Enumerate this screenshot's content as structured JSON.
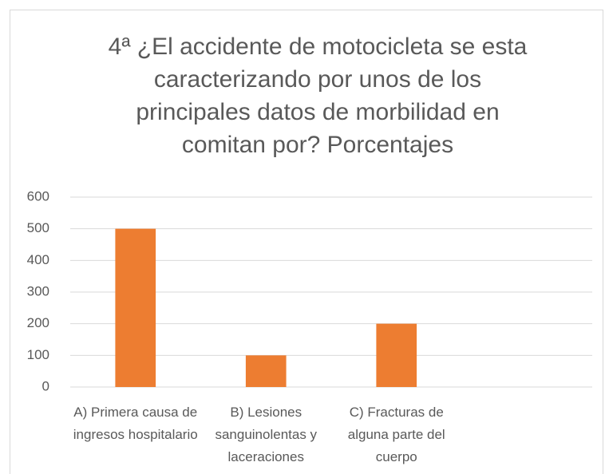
{
  "chart_data": {
    "type": "bar",
    "title": "4ª  ¿El accidente de motocicleta se esta caracterizando por unos de los principales datos de morbilidad en comitan por? Porcentajes",
    "categories": [
      "A) Primera causa de ingresos hospitalario",
      "B) Lesiones sanguinolentas y laceraciones",
      "C) Fracturas de alguna parte del cuerpo",
      null
    ],
    "values": [
      500,
      100,
      200,
      null
    ],
    "color": "#ed7d31",
    "ylim": [
      0,
      600
    ],
    "yticks": [
      0,
      100,
      200,
      300,
      400,
      500,
      600
    ],
    "grid": true
  }
}
